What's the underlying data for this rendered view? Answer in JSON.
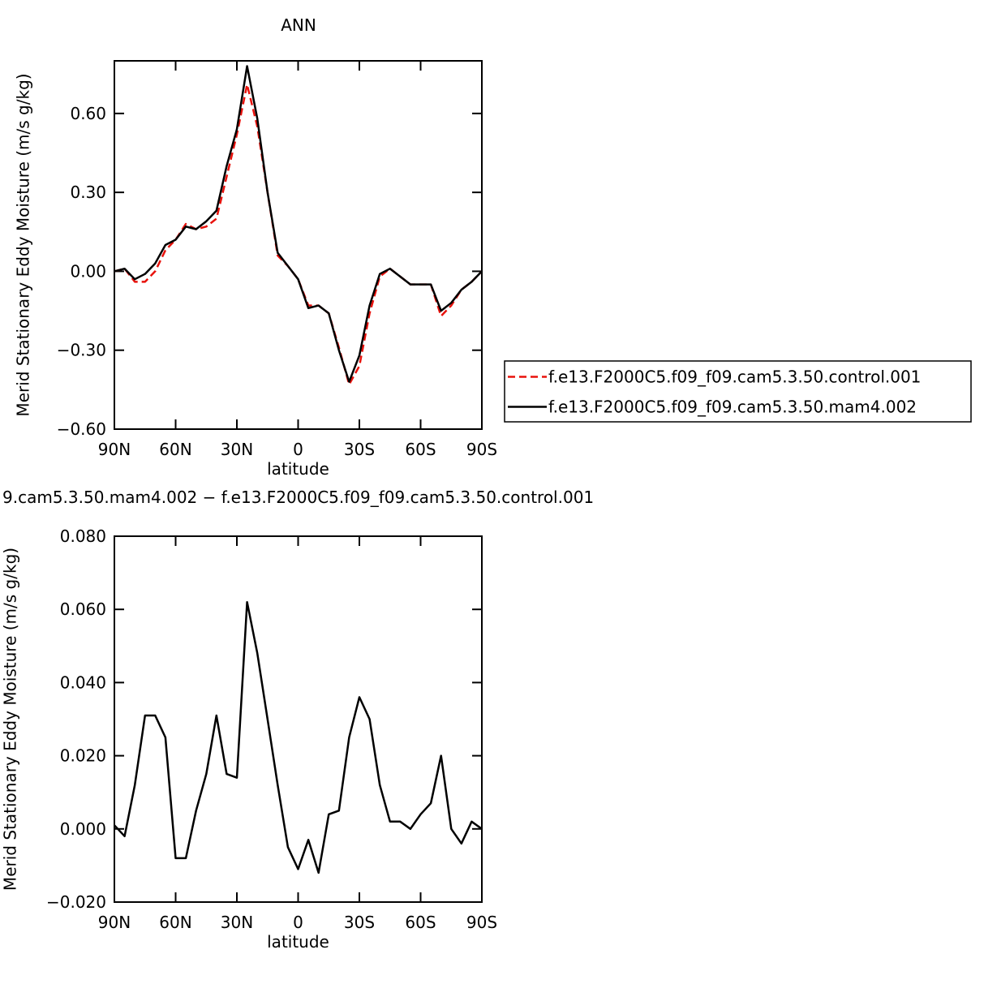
{
  "chart_data": [
    {
      "type": "line",
      "title": "ANN",
      "xlabel": "latitude",
      "ylabel": "Merid Stationary Eddy Moisture (m/s g/kg)",
      "x": [
        90,
        85,
        80,
        75,
        70,
        65,
        60,
        55,
        50,
        45,
        40,
        35,
        30,
        25,
        20,
        15,
        10,
        5,
        0,
        -5,
        -10,
        -15,
        -20,
        -25,
        -30,
        -35,
        -40,
        -45,
        -50,
        -55,
        -60,
        -65,
        -70,
        -75,
        -80,
        -85,
        -90
      ],
      "series": [
        {
          "name": "f.e13.F2000C5.f09_f09.cam5.3.50.control.001",
          "color": "#e8120c",
          "dashed": true,
          "values": [
            0.0,
            0.01,
            -0.04,
            -0.04,
            0.0,
            0.08,
            0.12,
            0.18,
            0.16,
            0.17,
            0.2,
            0.36,
            0.52,
            0.71,
            0.55,
            0.3,
            0.06,
            0.02,
            -0.03,
            -0.13,
            -0.13,
            -0.16,
            -0.29,
            -0.43,
            -0.36,
            -0.16,
            -0.02,
            0.01,
            -0.02,
            -0.05,
            -0.05,
            -0.05,
            -0.17,
            -0.13,
            -0.07,
            -0.04,
            0.0
          ]
        },
        {
          "name": "f.e13.F2000C5.f09_f09.cam5.3.50.mam4.002",
          "color": "#000000",
          "dashed": false,
          "values": [
            0.0,
            0.01,
            -0.03,
            -0.01,
            0.03,
            0.1,
            0.12,
            0.17,
            0.16,
            0.19,
            0.23,
            0.4,
            0.54,
            0.78,
            0.58,
            0.3,
            0.07,
            0.02,
            -0.03,
            -0.14,
            -0.13,
            -0.16,
            -0.3,
            -0.42,
            -0.32,
            -0.13,
            -0.01,
            0.01,
            -0.02,
            -0.05,
            -0.05,
            -0.05,
            -0.15,
            -0.12,
            -0.07,
            -0.04,
            0.0
          ]
        }
      ],
      "xlim": [
        90,
        -90
      ],
      "xticks": [
        {
          "value": 90,
          "label": "90N"
        },
        {
          "value": 60,
          "label": "60N"
        },
        {
          "value": 30,
          "label": "30N"
        },
        0,
        {
          "value": -30,
          "label": "30S"
        },
        {
          "value": -60,
          "label": "60S"
        },
        {
          "value": -90,
          "label": "90S"
        }
      ],
      "ylim": [
        -0.6,
        0.8
      ],
      "yticks": [
        {
          "value": 0.6,
          "label": "0.60"
        },
        {
          "value": 0.3,
          "label": "0.30"
        },
        {
          "value": 0,
          "label": "0.00"
        },
        {
          "value": -0.3,
          "label": "−0.30"
        },
        {
          "value": -0.6,
          "label": "−0.60"
        }
      ],
      "legend": "right"
    },
    {
      "type": "line",
      "title": "9.cam5.3.50.mam4.002 − f.e13.F2000C5.f09_f09.cam5.3.50.control.001",
      "xlabel": "latitude",
      "ylabel": "Merid Stationary Eddy Moisture (m/s g/kg)",
      "x": [
        90,
        85,
        80,
        75,
        70,
        65,
        60,
        55,
        50,
        45,
        40,
        35,
        30,
        25,
        20,
        15,
        10,
        5,
        0,
        -5,
        -10,
        -15,
        -20,
        -25,
        -30,
        -35,
        -40,
        -45,
        -50,
        -55,
        -60,
        -65,
        -70,
        -75,
        -80,
        -85,
        -90
      ],
      "color": "#000000",
      "values": [
        0.001,
        -0.002,
        0.012,
        0.031,
        0.031,
        0.025,
        -0.008,
        -0.008,
        0.005,
        0.015,
        0.031,
        0.015,
        0.014,
        0.062,
        0.048,
        0.03,
        0.012,
        -0.005,
        -0.011,
        -0.003,
        -0.012,
        0.004,
        0.005,
        0.025,
        0.036,
        0.03,
        0.012,
        0.002,
        0.002,
        0.0,
        0.004,
        0.007,
        0.02,
        0.0,
        -0.004,
        0.002,
        0.0
      ],
      "xlim": [
        90,
        -90
      ],
      "xticks": [
        {
          "value": 90,
          "label": "90N"
        },
        {
          "value": 60,
          "label": "60N"
        },
        {
          "value": 30,
          "label": "30N"
        },
        0,
        {
          "value": -30,
          "label": "30S"
        },
        {
          "value": -60,
          "label": "60S"
        },
        {
          "value": -90,
          "label": "90S"
        }
      ],
      "ylim": [
        -0.02,
        0.08
      ],
      "yticks": [
        {
          "value": 0.08,
          "label": "0.080"
        },
        {
          "value": 0.06,
          "label": "0.060"
        },
        {
          "value": 0.04,
          "label": "0.040"
        },
        {
          "value": 0.02,
          "label": "0.020"
        },
        {
          "value": 0,
          "label": "0.000"
        },
        {
          "value": -0.02,
          "label": "−0.020"
        }
      ]
    }
  ]
}
